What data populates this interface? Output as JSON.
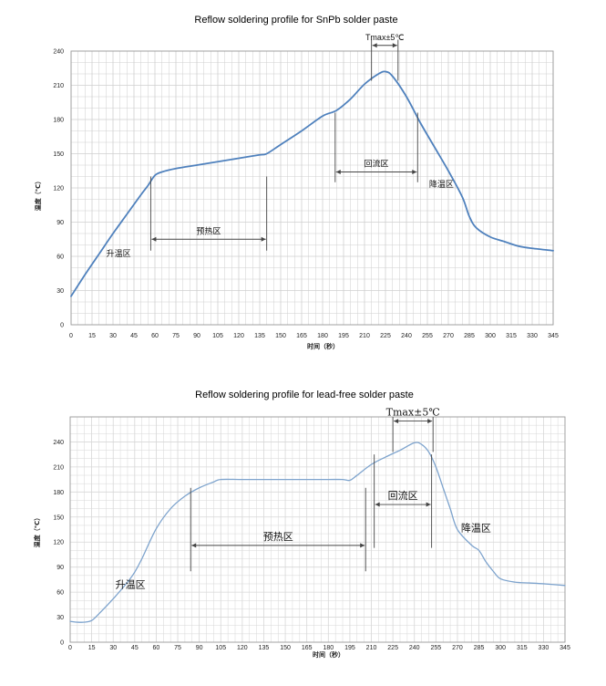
{
  "chart_data": [
    {
      "type": "line",
      "title": "Reflow soldering profile for SnPb solder paste",
      "xlabel": "时间（秒）",
      "ylabel": "温度（℃）",
      "xlim": [
        0,
        345
      ],
      "ylim": [
        0,
        240
      ],
      "x_ticks": [
        0,
        15,
        30,
        45,
        60,
        75,
        90,
        105,
        120,
        135,
        150,
        165,
        180,
        195,
        210,
        225,
        240,
        255,
        270,
        285,
        300,
        315,
        330,
        345
      ],
      "y_ticks": [
        0,
        30,
        60,
        90,
        120,
        150,
        180,
        210,
        240
      ],
      "grid": true,
      "line_color": "#4F81BD",
      "series": [
        {
          "x": [
            0,
            10,
            20,
            30,
            40,
            50,
            55,
            60,
            65,
            75,
            90,
            105,
            120,
            135,
            140,
            150,
            165,
            180,
            190,
            200,
            210,
            220,
            225,
            230,
            240,
            250,
            260,
            270,
            280,
            285,
            290,
            300,
            310,
            320,
            330,
            345
          ],
          "y": [
            25,
            44,
            62,
            80,
            97,
            114,
            122,
            131,
            134,
            137,
            140,
            143,
            146,
            149,
            150,
            158,
            170,
            183,
            188,
            198,
            211,
            220,
            222,
            218,
            200,
            177,
            156,
            135,
            112,
            95,
            85,
            77,
            73,
            69,
            67,
            65
          ]
        }
      ],
      "annotations": [
        {
          "kind": "label",
          "text": "升温区",
          "x": 34,
          "y": 60
        },
        {
          "kind": "bracket",
          "text": "预热区",
          "x_from": 57,
          "x_to": 140,
          "y": 75,
          "y_line_low": 65,
          "y_line_high": 130
        },
        {
          "kind": "bracket",
          "text": "回流区",
          "x_from": 189,
          "x_to": 248,
          "y": 134,
          "y_line_low": 125,
          "y_line_high": 186
        },
        {
          "kind": "label",
          "text": "降温区",
          "x": 265,
          "y": 121
        },
        {
          "kind": "bracket",
          "text": "Tmax±5℃",
          "x_from": 215,
          "x_to": 234,
          "y": 245,
          "y_line_low": 214,
          "y_line_high": 250
        }
      ]
    },
    {
      "type": "line",
      "title": "Reflow soldering profile for lead-free solder paste",
      "xlabel": "时间（秒）",
      "ylabel": "温度（℃）",
      "xlim": [
        0,
        345
      ],
      "ylim": [
        0,
        270
      ],
      "x_ticks": [
        0,
        15,
        30,
        45,
        60,
        75,
        90,
        105,
        120,
        135,
        150,
        165,
        180,
        195,
        210,
        225,
        240,
        255,
        270,
        285,
        300,
        315,
        330,
        345
      ],
      "y_ticks": [
        0,
        30,
        60,
        90,
        120,
        150,
        180,
        210,
        240
      ],
      "grid": true,
      "line_color": "#7DA3CD",
      "series": [
        {
          "x": [
            0,
            5,
            10,
            15,
            20,
            30,
            40,
            45,
            50,
            60,
            70,
            80,
            90,
            100,
            105,
            120,
            135,
            150,
            165,
            180,
            190,
            195,
            200,
            210,
            220,
            230,
            240,
            245,
            250,
            255,
            260,
            265,
            270,
            280,
            285,
            290,
            295,
            300,
            310,
            320,
            330,
            345
          ],
          "y": [
            25,
            24,
            24,
            26,
            34,
            52,
            72,
            84,
            100,
            136,
            160,
            175,
            185,
            192,
            195,
            195,
            195,
            195,
            195,
            195,
            195,
            194,
            200,
            213,
            222,
            230,
            239,
            237,
            228,
            210,
            185,
            160,
            135,
            116,
            110,
            96,
            85,
            76,
            72,
            71,
            70,
            68
          ]
        }
      ],
      "annotations": [
        {
          "kind": "label",
          "text": "升温区",
          "x": 42,
          "y": 65
        },
        {
          "kind": "bracket",
          "text": "预热区",
          "x_from": 84,
          "x_to": 206,
          "y": 116,
          "y_line_low": 85,
          "y_line_high": 185
        },
        {
          "kind": "bracket",
          "text": "回流区",
          "x_from": 212,
          "x_to": 252,
          "y": 165,
          "y_line_low": 113,
          "y_line_high": 225
        },
        {
          "kind": "label",
          "text": "降温区",
          "x": 283,
          "y": 133
        },
        {
          "kind": "bracket",
          "text": "Tmax±5℃",
          "x_from": 225,
          "x_to": 253,
          "y": 265,
          "y_line_low": 228,
          "y_line_high": 270
        }
      ]
    }
  ]
}
